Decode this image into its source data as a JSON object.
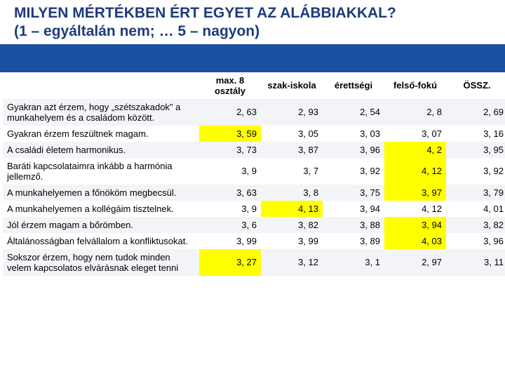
{
  "title_line1": "MILYEN MÉRTÉKBEN ÉRT EGYET AZ ALÁBBIAKKAL?",
  "title_line2": "(1 – egyáltalán nem; … 5 – nagyon)",
  "colors": {
    "title_text": "#1e3b7a",
    "blue_bar": "#1b4fa0",
    "header_bg": "#ffffff",
    "highlight_bg": "#ffff00",
    "row_alt_bg": "#f2f4f8",
    "row_bg": "#ffffff"
  },
  "headers": [
    "max. 8 osztály",
    "szak-iskola",
    "érettségi",
    "felső-fokú",
    "ÖSSZ."
  ],
  "rows": [
    {
      "label": "Gyakran azt érzem, hogy „szétszakadok\" a munkahelyem és a családom között.",
      "values": [
        "2, 63",
        "2, 93",
        "2, 54",
        "2, 8",
        "2, 69"
      ],
      "alt": true,
      "highlight_idx": null
    },
    {
      "label": "Gyakran érzem feszültnek magam.",
      "values": [
        "3, 59",
        "3, 05",
        "3, 03",
        "3, 07",
        "3, 16"
      ],
      "alt": false,
      "highlight_idx": 0
    },
    {
      "label": "A családi életem harmonikus.",
      "values": [
        "3, 73",
        "3, 87",
        "3, 96",
        "4, 2",
        "3, 95"
      ],
      "alt": true,
      "highlight_idx": 3
    },
    {
      "label": "Baráti kapcsolataimra inkább a harmónia jellemző.",
      "values": [
        "3, 9",
        "3, 7",
        "3, 92",
        "4, 12",
        "3, 92"
      ],
      "alt": false,
      "highlight_idx": 3
    },
    {
      "label": "A munkahelyemen a főnököm megbecsül.",
      "values": [
        "3, 63",
        "3, 8",
        "3, 75",
        "3, 97",
        "3, 79"
      ],
      "alt": true,
      "highlight_idx": 3
    },
    {
      "label": "A munkahelyemen a kollégáim tisztelnek.",
      "values": [
        "3, 9",
        "4, 13",
        "3, 94",
        "4, 12",
        "4, 01"
      ],
      "alt": false,
      "highlight_idx": 1
    },
    {
      "label": "Jól érzem magam a bőrömben.",
      "values": [
        "3, 6",
        "3, 82",
        "3, 88",
        "3, 94",
        "3, 82"
      ],
      "alt": true,
      "highlight_idx": 3
    },
    {
      "label": "Általánosságban felvállalom a konfliktusokat.",
      "values": [
        "3, 99",
        "3, 99",
        "3, 89",
        "4, 03",
        "3, 96"
      ],
      "alt": false,
      "highlight_idx": 3
    },
    {
      "label": "Sokszor érzem, hogy nem tudok minden velem kapcsolatos elvárásnak eleget tenni",
      "values": [
        "3, 27",
        "3, 12",
        "3, 1",
        "2, 97",
        "3, 11"
      ],
      "alt": true,
      "highlight_idx": 0
    }
  ]
}
